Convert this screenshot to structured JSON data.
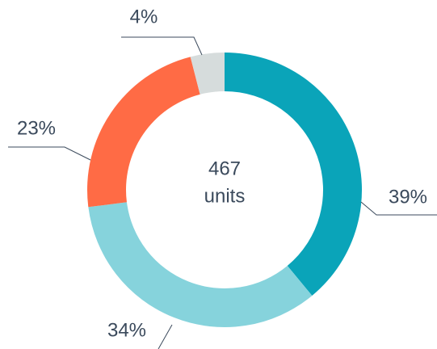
{
  "chart_data": {
    "type": "donut",
    "values": [
      39,
      34,
      23,
      4
    ],
    "value_labels": [
      "39%",
      "34%",
      "23%",
      "4%"
    ],
    "colors": [
      "#0aa4b9",
      "#86d3dc",
      "#ff6b45",
      "#d6dcdc"
    ],
    "center_value": 467,
    "center_label": "units"
  }
}
